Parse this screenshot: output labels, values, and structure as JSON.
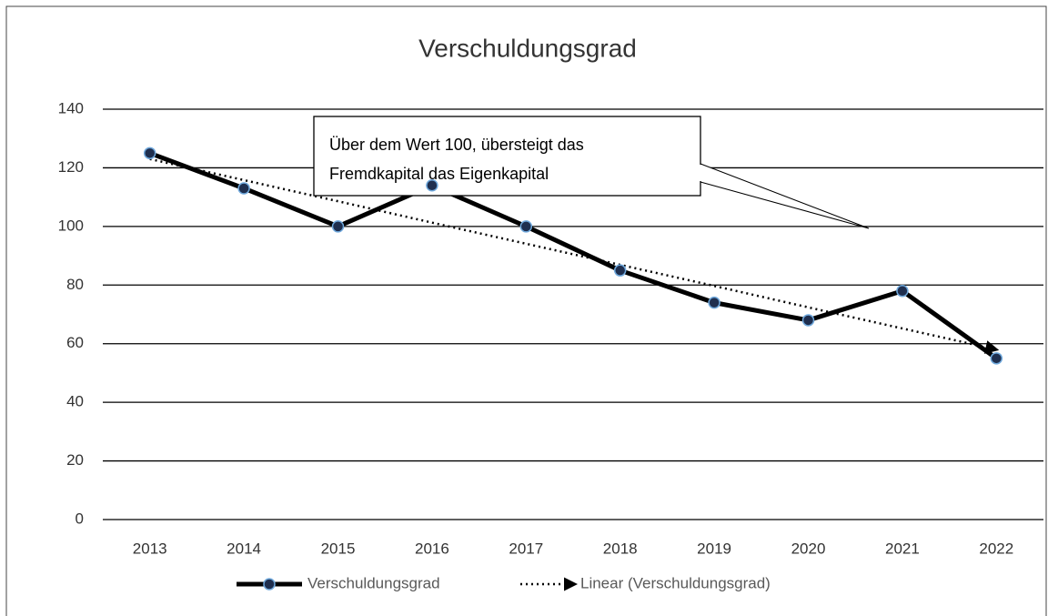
{
  "chart_data": {
    "type": "line",
    "title": "Verschuldungsgrad",
    "categories": [
      "2013",
      "2014",
      "2015",
      "2016",
      "2017",
      "2018",
      "2019",
      "2020",
      "2021",
      "2022"
    ],
    "series": [
      {
        "name": "Verschuldungsgrad",
        "color": "#000000",
        "marker_color": "#1f2f4f",
        "values": [
          125,
          113,
          100,
          114,
          100,
          85,
          74,
          68,
          78,
          55
        ]
      },
      {
        "name": "Linear (Verschuldungsgrad)",
        "color": "#000000",
        "dashed": true,
        "values": [
          123,
          115.8,
          108.6,
          101.3,
          94.1,
          86.9,
          79.7,
          72.4,
          65.2,
          58
        ]
      }
    ],
    "ylim": [
      0,
      140
    ],
    "yticks": [
      0,
      20,
      40,
      60,
      80,
      100,
      120,
      140
    ],
    "grid": true,
    "legend": "bottom",
    "annotations": [
      {
        "lines": [
          "Über dem Wert 100, übersteigt das",
          "Fremdkapital das Eigenkapital"
        ]
      }
    ]
  }
}
